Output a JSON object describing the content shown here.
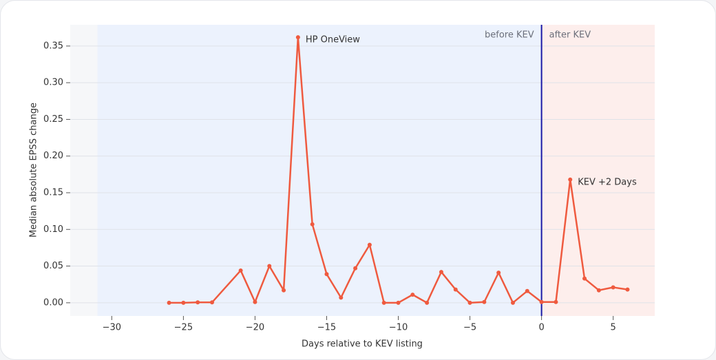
{
  "chart_data": {
    "type": "line",
    "x_label": "Days relative to KEV listing",
    "y_label": "Median absolute EPSS change",
    "x": [
      -26,
      -25,
      -24,
      -23,
      -21,
      -20,
      -19,
      -18,
      -17,
      -16,
      -15,
      -14,
      -13,
      -12,
      -11,
      -10,
      -9,
      -8,
      -7,
      -6,
      -5,
      -4,
      -3,
      -2,
      -1,
      0,
      1,
      2,
      3,
      4,
      5,
      6
    ],
    "values": [
      0.0,
      0.0,
      0.0005,
      0.0005,
      0.044,
      0.001,
      0.05,
      0.017,
      0.362,
      0.107,
      0.039,
      0.007,
      0.047,
      0.079,
      0.0,
      0.0,
      0.011,
      0.0,
      0.042,
      0.018,
      0.0,
      0.001,
      0.041,
      0.0,
      0.016,
      0.001,
      0.001,
      0.168,
      0.033,
      0.017,
      0.021,
      0.018
    ],
    "color": "#ef5a3f",
    "xlim": [
      -32.9,
      7.9
    ],
    "ylim": [
      -0.018,
      0.379
    ],
    "xticks": [
      {
        "value": -30,
        "label": "−30"
      },
      {
        "value": -25,
        "label": "−25"
      },
      {
        "value": -20,
        "label": "−20"
      },
      {
        "value": -15,
        "label": "−15"
      },
      {
        "value": -10,
        "label": "−10"
      },
      {
        "value": -5,
        "label": "−5"
      },
      {
        "value": 0,
        "label": "0"
      },
      {
        "value": 5,
        "label": "5"
      }
    ],
    "yticks": [
      {
        "value": 0,
        "label": "0.00"
      },
      {
        "value": 0.05,
        "label": "0.05"
      },
      {
        "value": 0.1,
        "label": "0.10"
      },
      {
        "value": 0.15,
        "label": "0.15"
      },
      {
        "value": 0.2,
        "label": "0.20"
      },
      {
        "value": 0.25,
        "label": "0.25"
      },
      {
        "value": 0.3,
        "label": "0.30"
      },
      {
        "value": 0.35,
        "label": "0.35"
      }
    ],
    "grid": true,
    "regions": [
      {
        "from": -31,
        "to": 0,
        "color": "#ecf2fd",
        "label": "before KEV"
      },
      {
        "from": 0,
        "to": 7.9,
        "color": "#fdeeec",
        "label": "after KEV"
      }
    ],
    "vline": {
      "x": 0,
      "color": "#1a1aa6"
    },
    "annotations": [
      {
        "text": "HP OneView",
        "x": -17,
        "y": 0.362
      },
      {
        "text": "KEV +2 Days",
        "x": 2,
        "y": 0.168
      }
    ]
  }
}
